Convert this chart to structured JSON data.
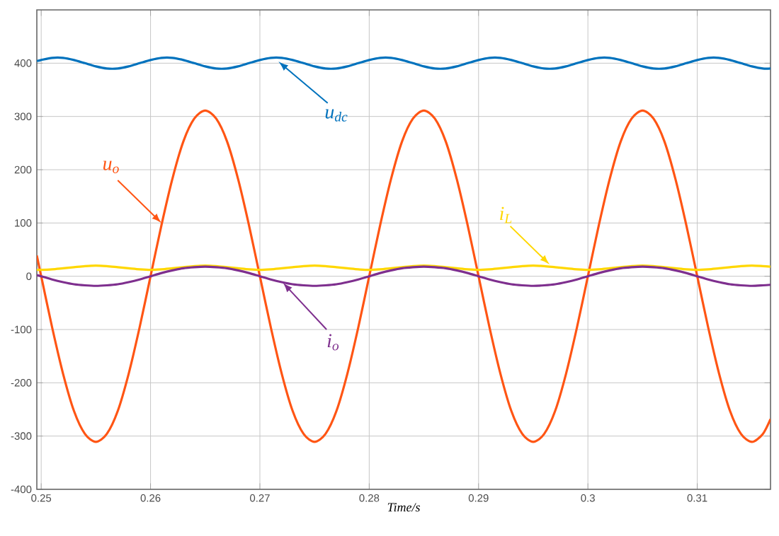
{
  "chart_data": {
    "type": "line",
    "xlabel": "Time/s",
    "x": [
      0.2496,
      0.25,
      0.251,
      0.252,
      0.253,
      0.254,
      0.255,
      0.256,
      0.257,
      0.258,
      0.259,
      0.26,
      0.261,
      0.262,
      0.263,
      0.264,
      0.265,
      0.266,
      0.267,
      0.268,
      0.269,
      0.27,
      0.271,
      0.272,
      0.273,
      0.274,
      0.275,
      0.276,
      0.277,
      0.278,
      0.279,
      0.28,
      0.281,
      0.282,
      0.283,
      0.284,
      0.285,
      0.286,
      0.287,
      0.288,
      0.289,
      0.29,
      0.291,
      0.292,
      0.293,
      0.294,
      0.295,
      0.296,
      0.297,
      0.298,
      0.299,
      0.3,
      0.301,
      0.302,
      0.303,
      0.304,
      0.305,
      0.306,
      0.307,
      0.308,
      0.309,
      0.31,
      0.311,
      0.312,
      0.313,
      0.314,
      0.315,
      0.316,
      0.3167
    ],
    "series": [
      {
        "color": "#0072bd",
        "values": [
          404,
          406,
          410,
          410,
          406,
          400,
          394,
          390,
          390,
          394,
          400,
          406,
          410,
          410,
          406,
          400,
          394,
          390,
          390,
          394,
          400,
          406,
          410,
          410,
          406,
          400,
          394,
          390,
          390,
          394,
          400,
          406,
          410,
          410,
          406,
          400,
          394,
          390,
          390,
          394,
          400,
          406,
          410,
          410,
          406,
          400,
          394,
          390,
          390,
          394,
          400,
          406,
          410,
          410,
          406,
          400,
          394,
          390,
          390,
          394,
          400,
          406,
          410,
          410,
          406,
          400,
          394,
          390,
          390
        ]
      },
      {
        "color": "#ff5514",
        "values": [
          39,
          0,
          -96,
          -183,
          -253,
          -296,
          -311,
          -296,
          -253,
          -183,
          -96,
          0,
          96,
          183,
          253,
          296,
          311,
          296,
          253,
          183,
          96,
          0,
          -96,
          -183,
          -253,
          -296,
          -311,
          -296,
          -253,
          -183,
          -96,
          0,
          96,
          183,
          253,
          296,
          311,
          296,
          253,
          183,
          96,
          0,
          -96,
          -183,
          -253,
          -296,
          -311,
          -296,
          -253,
          -183,
          -96,
          0,
          96,
          183,
          253,
          296,
          311,
          296,
          253,
          183,
          96,
          0,
          -96,
          -183,
          -253,
          -296,
          -311,
          -296,
          -268
        ]
      },
      {
        "color": "#ffd700",
        "values": [
          12,
          12,
          13,
          15,
          17,
          19,
          20,
          19,
          17,
          15,
          13,
          12,
          13,
          15,
          17,
          19,
          20,
          19,
          17,
          15,
          13,
          12,
          13,
          15,
          17,
          19,
          20,
          19,
          17,
          15,
          13,
          12,
          13,
          15,
          17,
          19,
          20,
          19,
          17,
          15,
          13,
          12,
          13,
          15,
          17,
          19,
          20,
          19,
          17,
          15,
          13,
          12,
          13,
          15,
          17,
          19,
          20,
          19,
          17,
          15,
          13,
          12,
          13,
          15,
          17,
          19,
          20,
          19,
          18
        ]
      },
      {
        "color": "#7e2f8e",
        "values": [
          2,
          0,
          -6,
          -11,
          -15,
          -17,
          -18,
          -17,
          -15,
          -11,
          -6,
          0,
          6,
          11,
          15,
          17,
          18,
          17,
          15,
          11,
          6,
          0,
          -6,
          -11,
          -15,
          -17,
          -18,
          -17,
          -15,
          -11,
          -6,
          0,
          6,
          11,
          15,
          17,
          18,
          17,
          15,
          11,
          6,
          0,
          -6,
          -11,
          -15,
          -17,
          -18,
          -17,
          -15,
          -11,
          -6,
          0,
          6,
          11,
          15,
          17,
          18,
          17,
          15,
          11,
          6,
          0,
          -6,
          -11,
          -15,
          -17,
          -18,
          -17,
          -16
        ]
      }
    ],
    "annotations": [
      {
        "text": "u$_{dc}$",
        "x": 0.2717,
        "y": 403
      },
      {
        "text": "u$_{o}$",
        "x": 0.261,
        "y": 100
      },
      {
        "text": "i$_{L}$",
        "x": 0.2965,
        "y": 22
      },
      {
        "text": "i$_{o}$",
        "x": 0.2721,
        "y": -12
      }
    ],
    "xlim": [
      0.2496,
      0.3167
    ],
    "ylim": [
      -400,
      500
    ],
    "xticks": [
      0.25,
      0.26,
      0.27,
      0.28,
      0.29,
      0.3,
      0.31
    ],
    "yticks": [
      -400,
      -300,
      -200,
      -100,
      0,
      100,
      200,
      300,
      400
    ],
    "grid": true,
    "line_style": "solid",
    "marker": "none"
  }
}
